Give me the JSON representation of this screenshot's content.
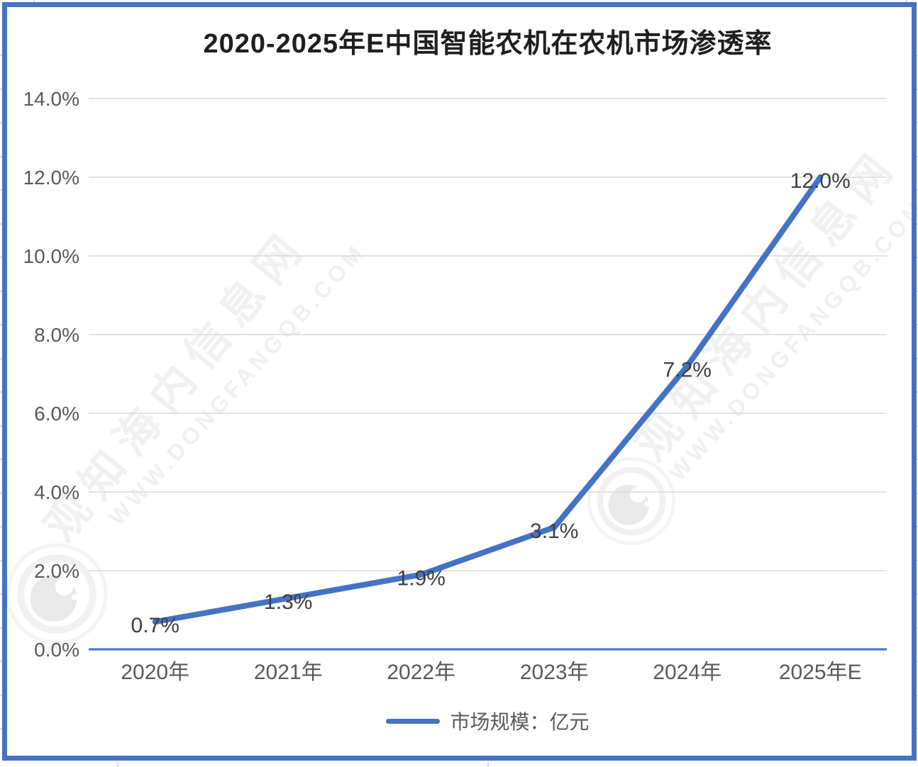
{
  "title": "2020-2025年E中国智能农机在农机市场渗透率",
  "legend": {
    "label": "市场规模：亿元"
  },
  "watermark": {
    "cn": "观知海内信息网",
    "url": "WWW.DONGFANGQB.COM"
  },
  "colors": {
    "line": "#4472C4",
    "frame": "#4472C4",
    "grid": "#D9D9D9",
    "axis_text": "#595959",
    "label_text": "#3F3F3F",
    "title_text": "#1F1F1F"
  },
  "chart_data": {
    "type": "line",
    "title": "2020-2025年E中国智能农机在农机市场渗透率",
    "categories": [
      "2020年",
      "2021年",
      "2022年",
      "2023年",
      "2024年",
      "2025年E"
    ],
    "series": [
      {
        "name": "市场规模：亿元",
        "values": [
          0.7,
          1.3,
          1.9,
          3.1,
          7.2,
          12.0
        ]
      }
    ],
    "data_labels": [
      "0.7%",
      "1.3%",
      "1.9%",
      "3.1%",
      "7.2%",
      "12.0%"
    ],
    "xlabel": "",
    "ylabel": "",
    "ylim": [
      0,
      14
    ],
    "ytick_step": 2,
    "ytick_labels": [
      "0.0%",
      "2.0%",
      "4.0%",
      "6.0%",
      "8.0%",
      "10.0%",
      "12.0%",
      "14.0%"
    ],
    "grid": true,
    "legend_position": "bottom"
  }
}
